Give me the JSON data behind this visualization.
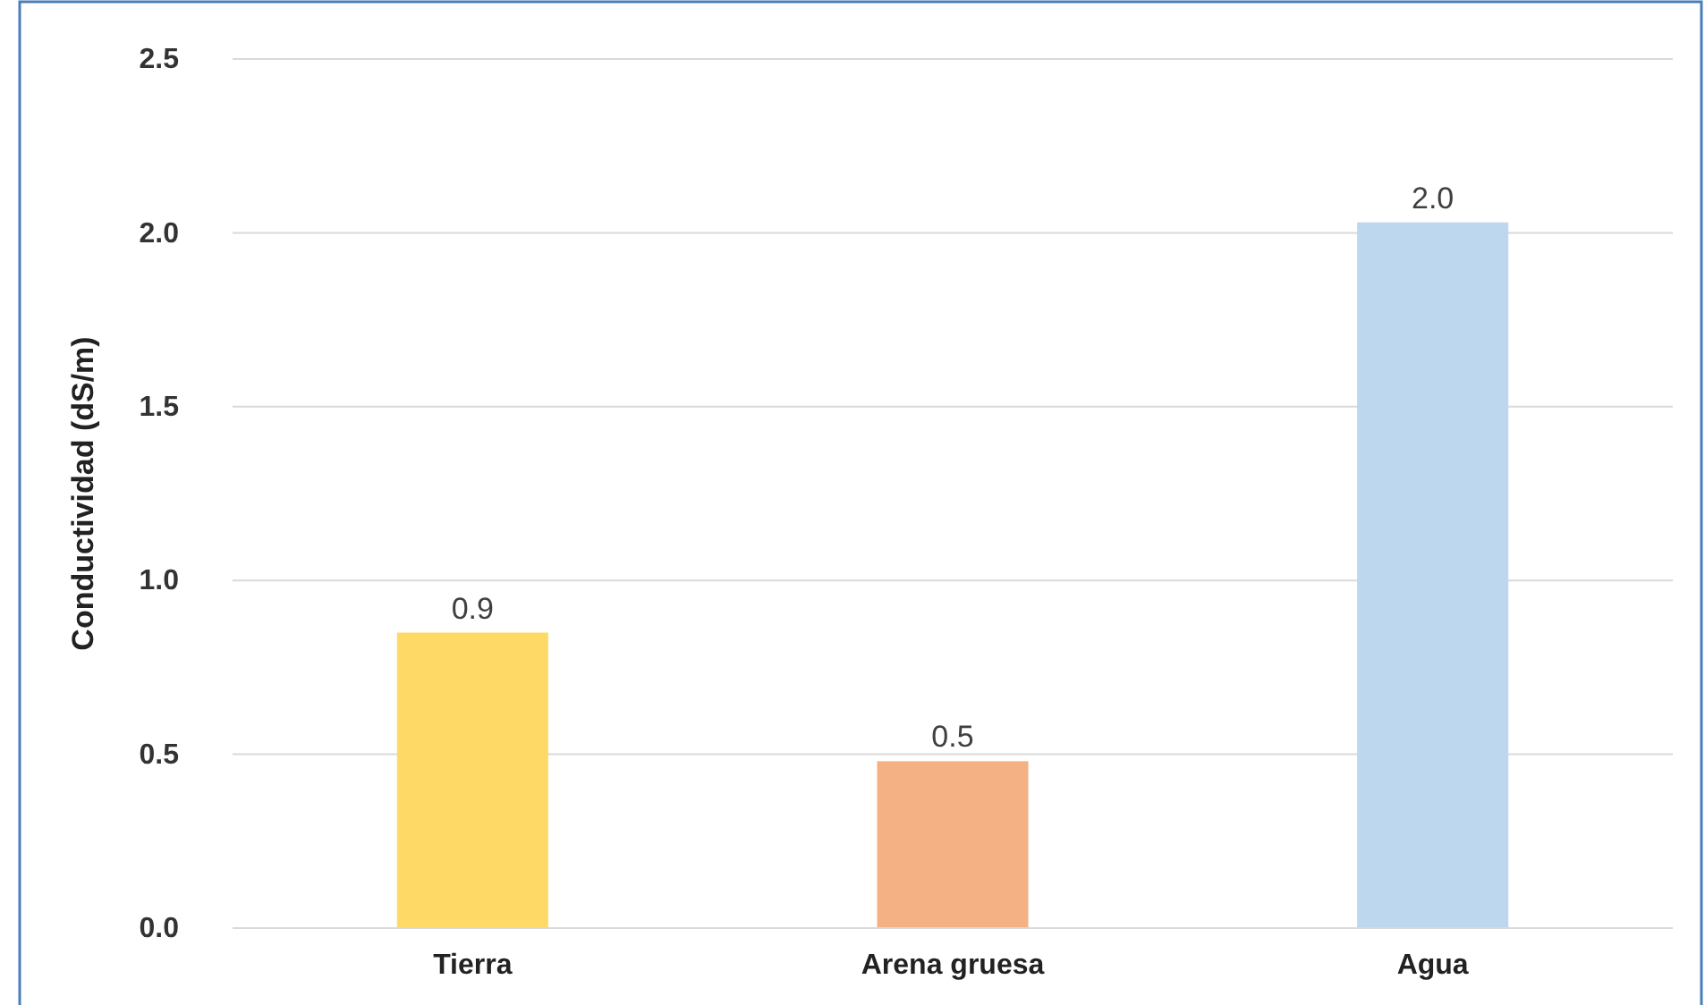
{
  "chart_data": {
    "type": "bar",
    "ylabel": "Conductividad (dS/m)",
    "categories": [
      "Tierra",
      "Arena gruesa",
      "Agua"
    ],
    "values": [
      0.85,
      0.48,
      2.03
    ],
    "colors": [
      "#ffd966",
      "#f4b183",
      "#bdd7ee"
    ],
    "value_labels": [
      "0.9",
      "0.5",
      "2.0"
    ],
    "ylim": [
      0,
      2.5
    ],
    "yticks": [
      {
        "value": 0,
        "label": "0.0"
      },
      {
        "value": 0.5,
        "label": "0.5"
      },
      {
        "value": 1,
        "label": "1.0"
      },
      {
        "value": 1.5,
        "label": "1.5"
      },
      {
        "value": 2,
        "label": "2.0"
      },
      {
        "value": 2.5,
        "label": "2.5"
      }
    ],
    "grid": "y"
  }
}
